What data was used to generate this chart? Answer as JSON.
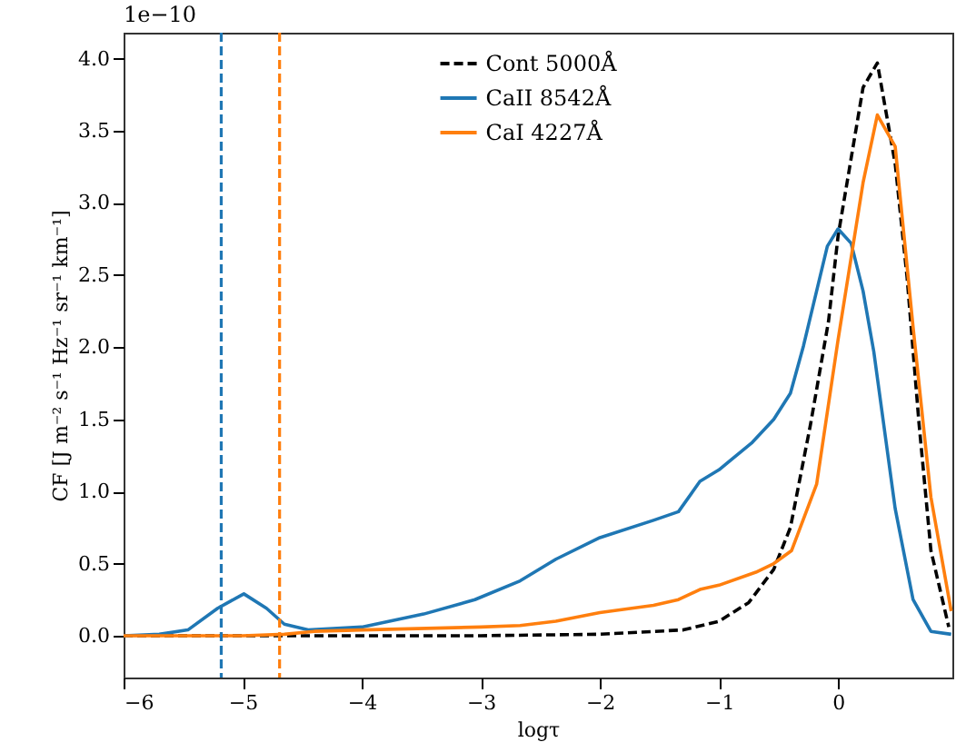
{
  "chart_data": {
    "type": "line",
    "xlabel": "logτ",
    "ylabel": "CF [J m⁻² s⁻¹ Hz⁻¹ sr⁻¹ km⁻¹]",
    "annotations": [
      "1e−10"
    ],
    "xlim": [
      -6,
      0.96
    ],
    "ylim": [
      -0.29,
      4.18
    ],
    "xticks": [
      {
        "value": -6,
        "label": "−6"
      },
      {
        "value": -5,
        "label": "−5"
      },
      {
        "value": -4,
        "label": "−4"
      },
      {
        "value": -3,
        "label": "−3"
      },
      {
        "value": -2,
        "label": "−2"
      },
      {
        "value": -1,
        "label": "−1"
      },
      {
        "value": 0,
        "label": "0"
      }
    ],
    "yticks": [
      {
        "value": 0,
        "label": "0.0"
      },
      {
        "value": 0.5,
        "label": "0.5"
      },
      {
        "value": 1,
        "label": "1.0"
      },
      {
        "value": 1.5,
        "label": "1.5"
      },
      {
        "value": 2,
        "label": "2.0"
      },
      {
        "value": 2.5,
        "label": "2.5"
      },
      {
        "value": 3,
        "label": "3.0"
      },
      {
        "value": 3.5,
        "label": "3.5"
      },
      {
        "value": 4,
        "label": "4.0"
      }
    ],
    "grid": false,
    "legend": "top",
    "marker": "none",
    "series": [
      {
        "name": "Cont 5000Å",
        "color": "#000000",
        "line_style": "dashed",
        "x": [
          -6,
          -4,
          -3,
          -2,
          -1.3,
          -1.0,
          -0.75,
          -0.54,
          -0.4,
          -0.23,
          -0.08,
          0.0,
          0.21,
          0.33,
          0.48,
          0.58,
          0.68,
          0.78,
          0.93
        ],
        "values": [
          0,
          0,
          0,
          0.01,
          0.04,
          0.1,
          0.23,
          0.46,
          0.75,
          1.47,
          2.18,
          2.77,
          3.8,
          3.97,
          3.27,
          2.48,
          1.47,
          0.59,
          0.06
        ]
      },
      {
        "name": "CaII 8542Å",
        "color": "#1f77b4",
        "line_style": "solid",
        "x": [
          -6,
          -5.7,
          -5.46,
          -5.21,
          -4.99,
          -4.8,
          -4.65,
          -4.45,
          -4.0,
          -3.48,
          -3.05,
          -2.67,
          -2.37,
          -2.0,
          -1.55,
          -1.34,
          -1.16,
          -1.0,
          -0.72,
          -0.54,
          -0.4,
          -0.29,
          -0.09,
          0.0,
          0.11,
          0.21,
          0.3,
          0.48,
          0.63,
          0.78,
          0.95
        ],
        "values": [
          0,
          0.01,
          0.04,
          0.19,
          0.29,
          0.19,
          0.08,
          0.04,
          0.06,
          0.15,
          0.25,
          0.38,
          0.53,
          0.68,
          0.8,
          0.86,
          1.07,
          1.15,
          1.34,
          1.5,
          1.68,
          2.01,
          2.7,
          2.82,
          2.72,
          2.39,
          1.97,
          0.88,
          0.25,
          0.03,
          0.01
        ]
      },
      {
        "name": "CaI 4227Å",
        "color": "#ff7f0e",
        "line_style": "solid",
        "x": [
          -6,
          -5.0,
          -4.65,
          -4.4,
          -4.0,
          -3.0,
          -2.67,
          -2.37,
          -2.0,
          -1.55,
          -1.34,
          -1.16,
          -1.0,
          -0.69,
          -0.54,
          -0.39,
          -0.18,
          0.0,
          0.21,
          0.33,
          0.48,
          0.63,
          0.78,
          0.95
        ],
        "values": [
          0,
          0,
          0.01,
          0.03,
          0.04,
          0.06,
          0.07,
          0.1,
          0.16,
          0.21,
          0.25,
          0.32,
          0.35,
          0.44,
          0.5,
          0.59,
          1.05,
          2.05,
          3.14,
          3.61,
          3.39,
          2.14,
          0.96,
          0.17
        ]
      }
    ],
    "ref_lines": [
      {
        "axis": "x",
        "value": -5.18,
        "color": "#1f77b4",
        "line_style": "dashed"
      },
      {
        "axis": "x",
        "value": -4.69,
        "color": "#ff7f0e",
        "line_style": "dashed"
      }
    ]
  }
}
